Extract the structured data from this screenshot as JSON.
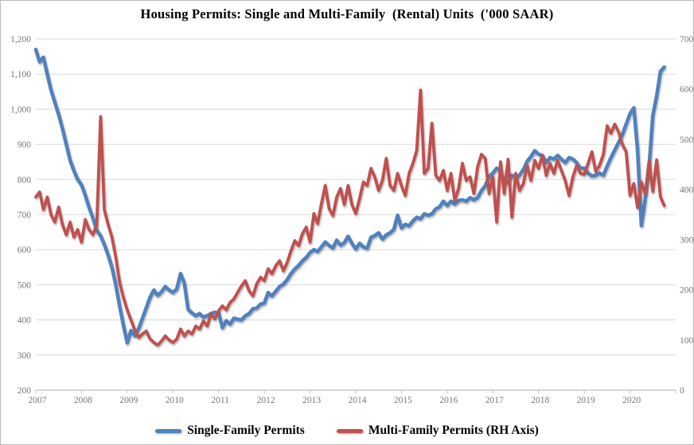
{
  "chart_data": {
    "type": "line",
    "title": "Housing Permits: Single and Multi-Family  (Rental) Units  ('000 SAAR)",
    "x_start": "2007-01",
    "x_end": "2020-10",
    "frequency": "monthly",
    "x_tick_labels": [
      "2007",
      "2008",
      "2009",
      "2010",
      "2011",
      "2012",
      "2013",
      "2014",
      "2015",
      "2016",
      "2017",
      "2018",
      "2019",
      "2020"
    ],
    "grid": "horizontal",
    "legend_position": "bottom",
    "axes": {
      "left": {
        "min": 200,
        "max": 1200,
        "step": 100,
        "tick_labels": [
          "200",
          "300",
          "400",
          "500",
          "600",
          "700",
          "800",
          "900",
          "1,000",
          "1,100",
          "1,200"
        ]
      },
      "right": {
        "min": 0,
        "max": 700,
        "step": 100,
        "tick_labels": [
          "0",
          "100",
          "200",
          "300",
          "400",
          "500",
          "600",
          "700"
        ]
      }
    },
    "series": [
      {
        "name": "Single-Family Permits",
        "axis": "left",
        "color": "#4F81BD",
        "values": [
          1170,
          1135,
          1148,
          1100,
          1055,
          1020,
          985,
          945,
          900,
          855,
          825,
          800,
          785,
          755,
          720,
          690,
          655,
          640,
          615,
          585,
          550,
          500,
          440,
          385,
          335,
          370,
          355,
          375,
          405,
          435,
          465,
          485,
          470,
          480,
          495,
          485,
          478,
          488,
          532,
          505,
          430,
          420,
          412,
          418,
          408,
          412,
          418,
          422,
          420,
          378,
          398,
          388,
          405,
          402,
          400,
          412,
          418,
          432,
          434,
          445,
          448,
          478,
          468,
          482,
          495,
          502,
          515,
          532,
          545,
          555,
          568,
          578,
          592,
          600,
          595,
          608,
          622,
          612,
          605,
          627,
          613,
          620,
          638,
          618,
          602,
          618,
          608,
          604,
          635,
          640,
          648,
          630,
          642,
          648,
          658,
          698,
          662,
          672,
          668,
          682,
          692,
          688,
          702,
          698,
          702,
          716,
          722,
          738,
          726,
          738,
          730,
          740,
          742,
          738,
          748,
          742,
          748,
          768,
          782,
          808,
          818,
          832,
          825,
          792,
          790,
          812,
          805,
          812,
          828,
          852,
          865,
          882,
          872,
          868,
          848,
          862,
          858,
          868,
          858,
          848,
          862,
          858,
          848,
          832,
          832,
          818,
          810,
          812,
          818,
          812,
          838,
          862,
          884,
          905,
          928,
          958,
          987,
          1004,
          884,
          669,
          745,
          834,
          983,
          1038,
          1108,
          1120
        ]
      },
      {
        "name": "Multi-Family Permits (RH Axis)",
        "axis": "right",
        "color": "#C0504D",
        "values": [
          385,
          395,
          360,
          385,
          350,
          335,
          365,
          330,
          310,
          335,
          305,
          320,
          295,
          340,
          320,
          310,
          330,
          545,
          360,
          330,
          305,
          265,
          215,
          185,
          160,
          140,
          120,
          105,
          112,
          118,
          102,
          95,
          90,
          98,
          108,
          100,
          95,
          102,
          122,
          108,
          118,
          112,
          128,
          122,
          138,
          128,
          152,
          142,
          158,
          168,
          160,
          175,
          182,
          195,
          208,
          218,
          198,
          188,
          212,
          225,
          218,
          242,
          232,
          248,
          258,
          238,
          255,
          278,
          298,
          288,
          312,
          325,
          295,
          352,
          332,
          372,
          408,
          362,
          348,
          385,
          402,
          370,
          408,
          370,
          352,
          382,
          415,
          408,
          442,
          425,
          398,
          418,
          462,
          408,
          398,
          432,
          408,
          388,
          432,
          452,
          478,
          598,
          432,
          442,
          532,
          428,
          418,
          438,
          398,
          432,
          378,
          402,
          452,
          418,
          425,
          392,
          445,
          470,
          462,
          392,
          425,
          335,
          455,
          392,
          460,
          345,
          432,
          398,
          412,
          448,
          418,
          458,
          442,
          468,
          428,
          452,
          432,
          458,
          438,
          418,
          388,
          425,
          448,
          432,
          430,
          452,
          475,
          436,
          448,
          470,
          527,
          512,
          530,
          515,
          490,
          475,
          388,
          412,
          364,
          415,
          391,
          456,
          396,
          459,
          385,
          368
        ]
      }
    ]
  },
  "colors": {
    "background": "#FFFFFF",
    "grid": "#D9D9D9",
    "axis": "#BFBFBF",
    "tick_label": "#767676",
    "title": "#000000",
    "single_family": "#4F81BD",
    "multi_family": "#C0504D"
  }
}
